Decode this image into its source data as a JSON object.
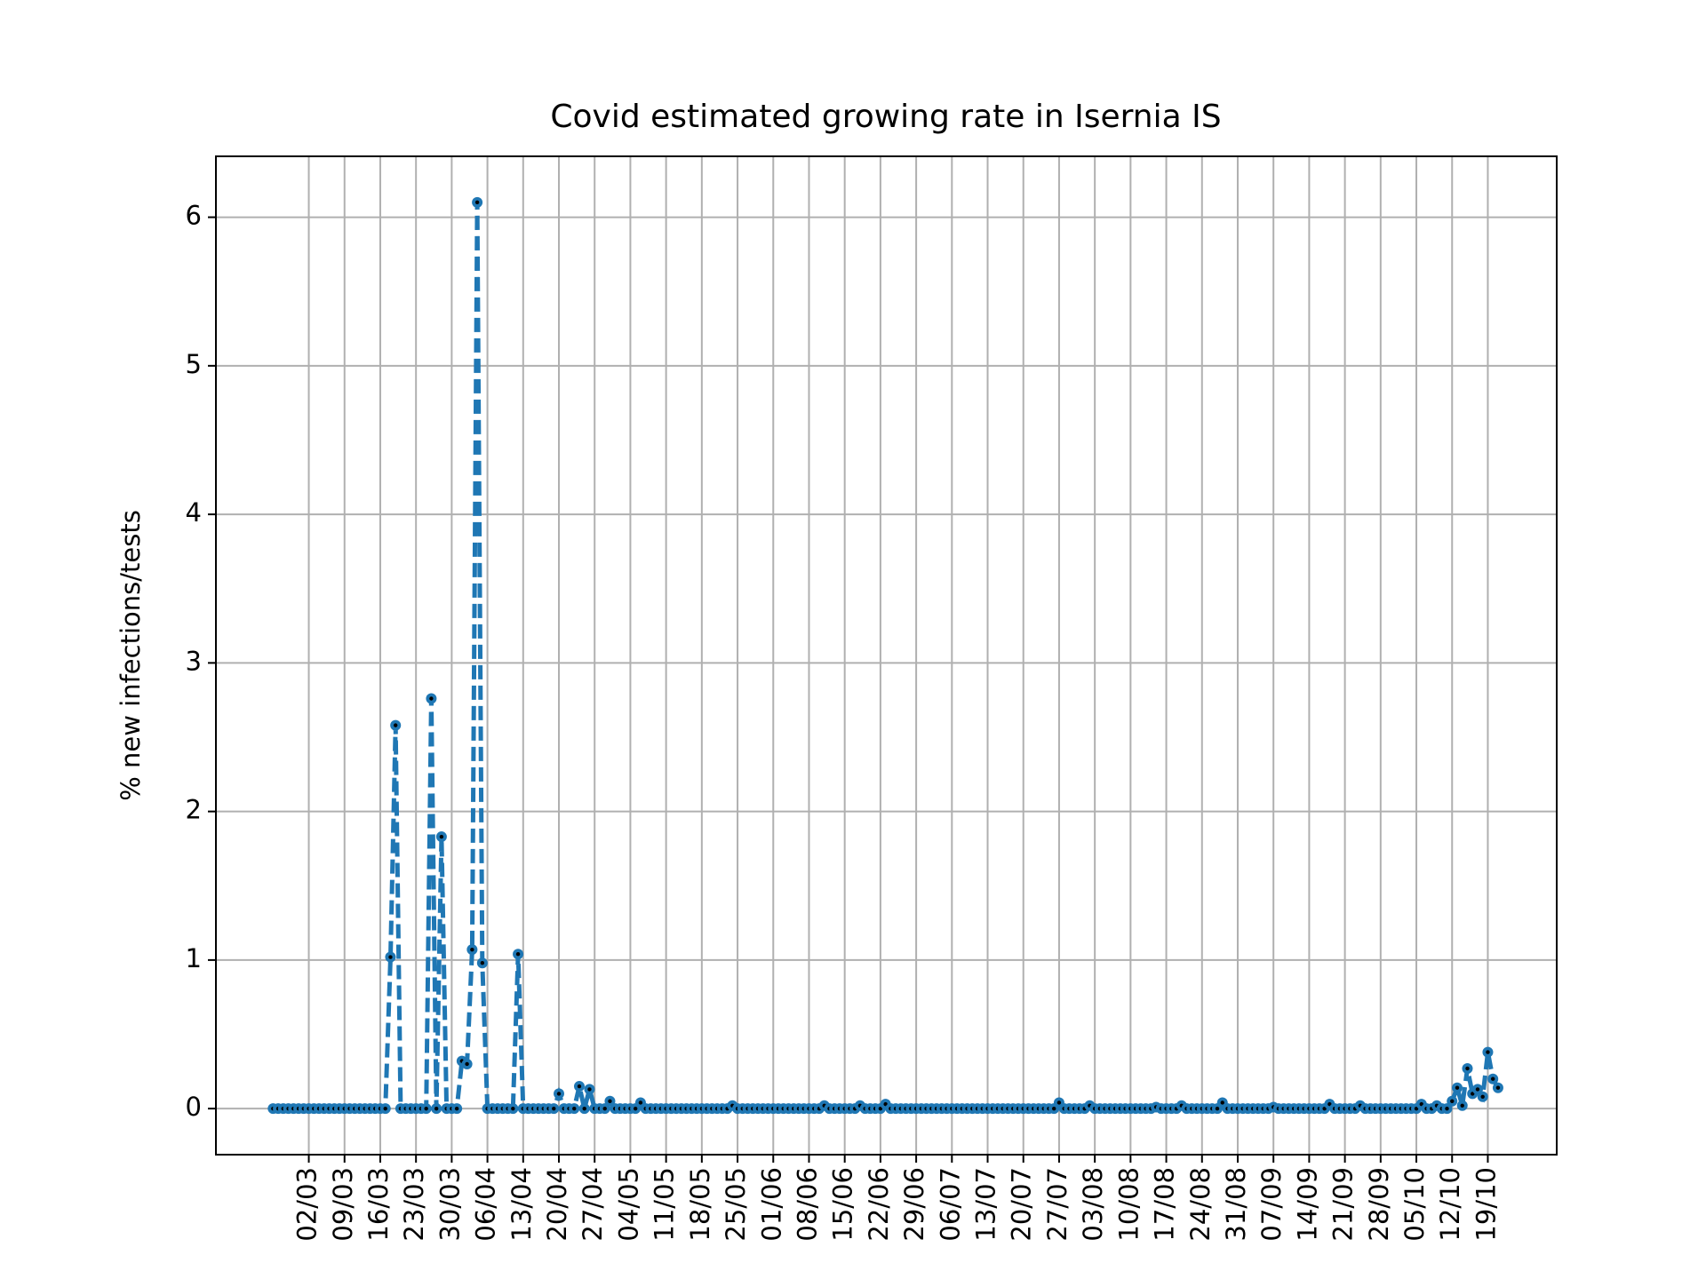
{
  "chart_data": {
    "type": "line",
    "title": "Covid estimated growing rate in Isernia IS",
    "y_label": "% new infections/tests",
    "categories": [
      null,
      null,
      null,
      null,
      null,
      null,
      null,
      "02/03",
      null,
      null,
      null,
      null,
      null,
      null,
      "09/03",
      null,
      null,
      null,
      null,
      null,
      null,
      "16/03",
      null,
      null,
      null,
      null,
      null,
      null,
      "23/03",
      null,
      null,
      null,
      null,
      null,
      null,
      "30/03",
      null,
      null,
      null,
      null,
      null,
      null,
      "06/04",
      null,
      null,
      null,
      null,
      null,
      null,
      "13/04",
      null,
      null,
      null,
      null,
      null,
      null,
      "20/04",
      null,
      null,
      null,
      null,
      null,
      null,
      "27/04",
      null,
      null,
      null,
      null,
      null,
      null,
      "04/05",
      null,
      null,
      null,
      null,
      null,
      null,
      "11/05",
      null,
      null,
      null,
      null,
      null,
      null,
      "18/05",
      null,
      null,
      null,
      null,
      null,
      null,
      "25/05",
      null,
      null,
      null,
      null,
      null,
      null,
      "01/06",
      null,
      null,
      null,
      null,
      null,
      null,
      "08/06",
      null,
      null,
      null,
      null,
      null,
      null,
      "15/06",
      null,
      null,
      null,
      null,
      null,
      null,
      "22/06",
      null,
      null,
      null,
      null,
      null,
      null,
      "29/06",
      null,
      null,
      null,
      null,
      null,
      null,
      "06/07",
      null,
      null,
      null,
      null,
      null,
      null,
      "13/07",
      null,
      null,
      null,
      null,
      null,
      null,
      "20/07",
      null,
      null,
      null,
      null,
      null,
      null,
      "27/07",
      null,
      null,
      null,
      null,
      null,
      null,
      "03/08",
      null,
      null,
      null,
      null,
      null,
      null,
      "10/08",
      null,
      null,
      null,
      null,
      null,
      null,
      "17/08",
      null,
      null,
      null,
      null,
      null,
      null,
      "24/08",
      null,
      null,
      null,
      null,
      null,
      null,
      "31/08",
      null,
      null,
      null,
      null,
      null,
      null,
      "07/09",
      null,
      null,
      null,
      null,
      null,
      null,
      "14/09",
      null,
      null,
      null,
      null,
      null,
      null,
      "21/09",
      null,
      null,
      null,
      null,
      null,
      null,
      "28/09",
      null,
      null,
      null,
      null,
      null,
      null,
      "05/10",
      null,
      null,
      null,
      null,
      null,
      null,
      "12/10",
      null,
      null,
      null,
      null,
      null,
      null,
      "19/10",
      null,
      null
    ],
    "values": [
      0,
      0,
      0,
      0,
      0,
      0,
      0,
      0,
      0,
      0,
      0,
      0,
      0,
      0,
      0,
      0,
      0,
      0,
      0,
      0,
      0,
      0,
      0,
      1.02,
      2.58,
      0,
      0,
      0,
      0,
      0,
      0,
      2.76,
      0,
      1.83,
      0,
      0,
      0,
      0.32,
      0.3,
      1.07,
      6.1,
      0.98,
      0,
      0,
      0,
      0,
      0,
      0,
      1.04,
      0,
      0,
      0,
      0,
      0,
      0,
      0,
      0.1,
      0,
      0,
      0,
      0.15,
      0,
      0.13,
      0,
      0,
      0,
      0.05,
      0,
      0,
      0,
      0,
      0,
      0.04,
      0,
      0,
      0,
      0,
      0,
      0,
      0,
      0,
      0,
      0,
      0,
      0,
      0,
      0,
      0,
      0,
      0,
      0.02,
      0,
      0,
      0,
      0,
      0,
      0,
      0,
      0,
      0,
      0,
      0,
      0,
      0,
      0,
      0,
      0,
      0,
      0.02,
      0,
      0,
      0,
      0,
      0,
      0,
      0.02,
      0,
      0,
      0,
      0,
      0.03,
      0,
      0,
      0,
      0,
      0,
      0,
      0,
      0,
      0,
      0,
      0,
      0,
      0,
      0,
      0,
      0,
      0,
      0,
      0,
      0,
      0,
      0,
      0,
      0,
      0,
      0,
      0,
      0,
      0,
      0,
      0,
      0,
      0,
      0.04,
      0,
      0,
      0,
      0,
      0,
      0.02,
      0,
      0,
      0,
      0,
      0,
      0,
      0,
      0,
      0,
      0,
      0,
      0,
      0.01,
      0,
      0,
      0,
      0,
      0.02,
      0,
      0,
      0,
      0,
      0,
      0,
      0,
      0.04,
      0,
      0,
      0,
      0,
      0,
      0,
      0,
      0,
      0,
      0.01,
      0,
      0,
      0,
      0,
      0,
      0,
      0,
      0,
      0,
      0,
      0.03,
      0,
      0,
      0,
      0,
      0,
      0.02,
      0,
      0,
      0,
      0,
      0,
      0,
      0,
      0,
      0,
      0,
      0,
      0.03,
      0,
      0,
      0.02,
      0,
      0,
      0.05,
      0.14,
      0.02,
      0.27,
      0.1,
      0.13,
      0.08,
      0.38,
      0.2,
      0.14
    ],
    "color": "#1f77b4",
    "ylim": [
      -0.31,
      6.41
    ],
    "yticks": [
      0,
      1,
      2,
      3,
      4,
      5,
      6
    ],
    "grid": true
  }
}
